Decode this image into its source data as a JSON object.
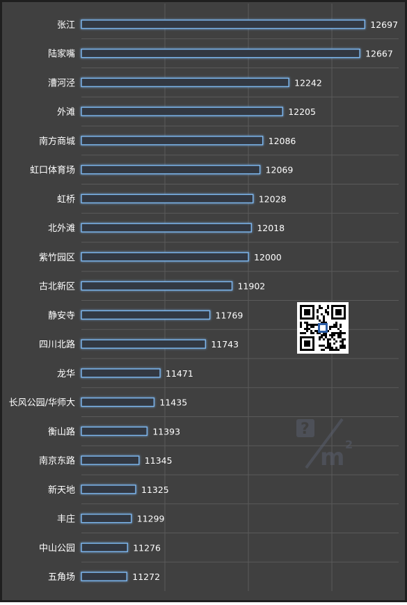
{
  "colors": {
    "background": "#404040",
    "frame": "#1f1f1f",
    "bar_fill": "#303842",
    "bar_stroke": "#7fb8f0",
    "bar_glow": "#2f7fd6",
    "grid": "#5a5a5a",
    "text": "#ffffff"
  },
  "chart_data": {
    "type": "bar",
    "orientation": "horizontal",
    "categories": [
      "张江",
      "陆家嘴",
      "漕河泾",
      "外滩",
      "南方商城",
      "虹口体育场",
      "虹桥",
      "北外滩",
      "紫竹园区",
      "古北新区",
      "静安寺",
      "四川北路",
      "龙华",
      "长风公园/华师大",
      "衡山路",
      "南京东路",
      "新天地",
      "丰庄",
      "中山公园",
      "五角场"
    ],
    "values": [
      12697,
      12667,
      12242,
      12205,
      12086,
      12069,
      12028,
      12018,
      12000,
      11902,
      11769,
      11743,
      11471,
      11435,
      11393,
      11345,
      11325,
      11299,
      11276,
      11272
    ],
    "xlim": [
      11000,
      12900
    ],
    "data_labels": true,
    "grid": true,
    "legend": "none"
  },
  "decorations": {
    "qr_code": "qr-code",
    "watermark": "price-per-square-meter-logo"
  }
}
